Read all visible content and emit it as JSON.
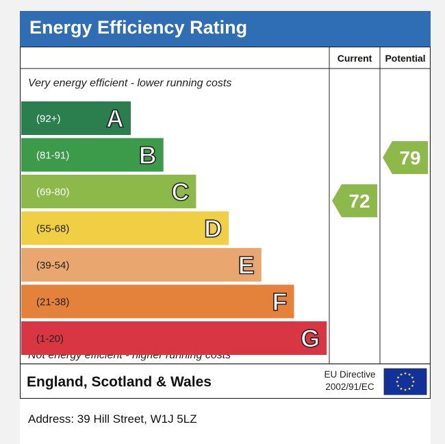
{
  "title": "Energy Efficiency Rating",
  "chart_data": {
    "type": "bar",
    "columns": {
      "current": "Current",
      "potential": "Potential"
    },
    "top_note": "Very energy efficient - lower running costs",
    "bottom_note": "Not energy efficient - higher running costs",
    "bands": [
      {
        "letter": "A",
        "range": "(92+)",
        "min": 92,
        "max": 100,
        "color": "#2b7f4f"
      },
      {
        "letter": "B",
        "range": "(81-91)",
        "min": 81,
        "max": 91,
        "color": "#3c9b4a"
      },
      {
        "letter": "C",
        "range": "(69-80)",
        "min": 69,
        "max": 80,
        "color": "#8cb94a"
      },
      {
        "letter": "D",
        "range": "(55-68)",
        "min": 55,
        "max": 68,
        "color": "#f0cf44"
      },
      {
        "letter": "E",
        "range": "(39-54)",
        "min": 39,
        "max": 54,
        "color": "#e9a66e"
      },
      {
        "letter": "F",
        "range": "(21-38)",
        "min": 21,
        "max": 38,
        "color": "#e4823c"
      },
      {
        "letter": "G",
        "range": "(1-20)",
        "min": 1,
        "max": 20,
        "color": "#d93643"
      }
    ],
    "current": {
      "value": 72,
      "band": "C",
      "color": "#8cb94a"
    },
    "potential": {
      "value": 79,
      "band": "C",
      "color": "#8cb94a"
    },
    "region": "England, Scotland & Wales",
    "directive": [
      "EU Directive",
      "2002/91/EC"
    ],
    "flag_icon": "eu-flag-icon"
  },
  "address": "Address: 39 Hill Street, W1J 5LZ"
}
